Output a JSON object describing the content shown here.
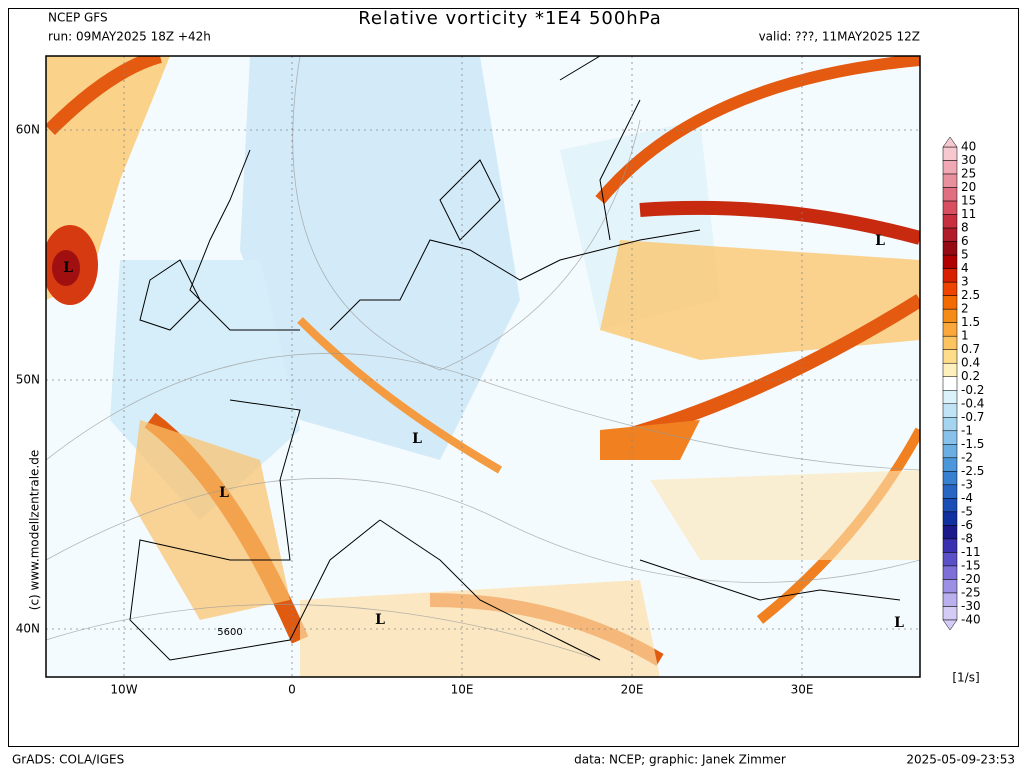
{
  "header": {
    "model": "NCEP GFS",
    "run": "run: 09MAY2025 18Z +42h",
    "title": "Relative vorticity *1E4 500hPa",
    "valid": "valid: ???, 11MAY2025 12Z"
  },
  "map": {
    "lat_labels": [
      "60N",
      "50N",
      "40N"
    ],
    "lon_labels": [
      "10W",
      "0",
      "10E",
      "20E",
      "30E"
    ],
    "lows": [
      "L",
      "L",
      "L",
      "L",
      "L",
      "L"
    ],
    "contour_label": "5600",
    "credit": "(c) www.modellzentrale.de"
  },
  "colorbar": {
    "labels": [
      "40",
      "30",
      "25",
      "20",
      "15",
      "11",
      "8",
      "6",
      "5",
      "4",
      "3",
      "2.5",
      "2",
      "1.5",
      "1",
      "0.7",
      "0.4",
      "0.2",
      "-0.2",
      "-0.4",
      "-0.7",
      "-1",
      "-1.5",
      "-2",
      "-2.5",
      "-3",
      "-4",
      "-5",
      "-6",
      "-8",
      "-11",
      "-15",
      "-20",
      "-25",
      "-30",
      "-40"
    ],
    "colors": [
      "#f7c8d0",
      "#f0a8b4",
      "#e8909c",
      "#e07080",
      "#d85060",
      "#c83040",
      "#b01c28",
      "#960a14",
      "#b00000",
      "#d82000",
      "#ee4400",
      "#f26a00",
      "#f68c18",
      "#faa83c",
      "#fcc460",
      "#fddc8a",
      "#fef0bc",
      "#ffffff",
      "#dcf2fa",
      "#c0e4f6",
      "#a4d4f0",
      "#88c2ea",
      "#6aaee2",
      "#4c96da",
      "#3880d0",
      "#2866c4",
      "#1a4eb6",
      "#1030a0",
      "#1a1a8c",
      "#3a30b0",
      "#5c50c8",
      "#7c70d8",
      "#9c90e4",
      "#bab0ee",
      "#d4ccf6"
    ],
    "unit": "[1/s]"
  },
  "footer": {
    "left": "GrADS: COLA/IGES",
    "center": "data: NCEP; graphic: Janek Zimmer",
    "right": "2025-05-09-23:53"
  }
}
